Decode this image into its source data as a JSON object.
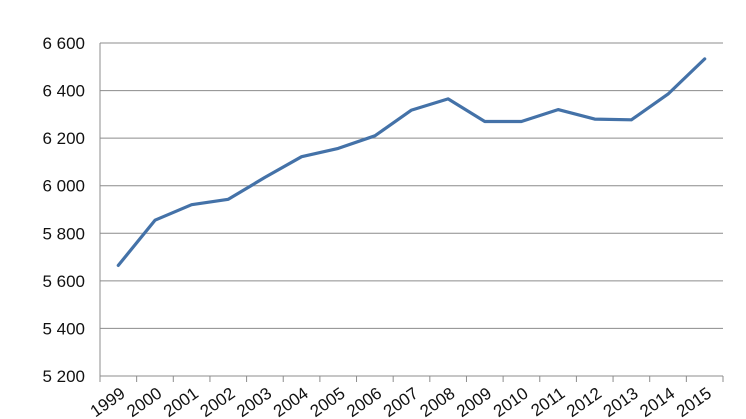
{
  "chart_data": {
    "type": "line",
    "title": "",
    "xlabel": "",
    "ylabel": "",
    "categories": [
      "1999",
      "2000",
      "2001",
      "2002",
      "2003",
      "2004",
      "2005",
      "2006",
      "2007",
      "2008",
      "2009",
      "2010",
      "2011",
      "2012",
      "2013",
      "2014",
      "2015"
    ],
    "y_ticks": [
      "5 200",
      "5 400",
      "5 600",
      "5 800",
      "6 000",
      "6 200",
      "6 400",
      "6 600"
    ],
    "ylim": [
      5200,
      6600
    ],
    "grid": true,
    "legend": "none",
    "series": [
      {
        "values": [
          5665,
          5855,
          5920,
          5943,
          6035,
          6122,
          6157,
          6210,
          6318,
          6365,
          6270,
          6270,
          6320,
          6280,
          6277,
          6385,
          6533
        ],
        "color": "#4472a8"
      }
    ]
  }
}
